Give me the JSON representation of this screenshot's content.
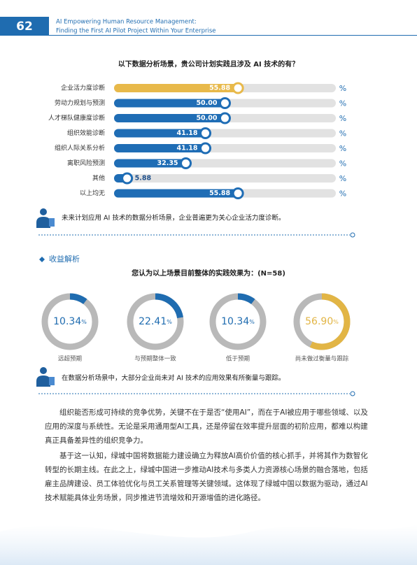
{
  "header": {
    "page_number": "62",
    "title_lines": [
      "AI Empowering Human Resource Management:",
      "Finding the First AI Pilot Project Within Your Enterprise"
    ]
  },
  "chart_data": [
    {
      "type": "bar",
      "title": "以下数据分析场景，贵公司计划实践且涉及 AI 技术的有？",
      "categories": [
        "企业活力度诊断",
        "劳动力规划与预测",
        "人才梯队健康度诊断",
        "组织效能诊断",
        "组织人际关系分析",
        "离职风险预测",
        "其他",
        "以上均无"
      ],
      "values": [
        55.88,
        50,
        50,
        41.18,
        41.18,
        32.35,
        5.88,
        55.88
      ],
      "value_labels": [
        "55.88",
        "50.00",
        "50.00",
        "41.18",
        "41.18",
        "32.35",
        "5.88",
        "55.88"
      ],
      "colors": [
        "#e8b94a",
        "#1f6db5",
        "#1f6db5",
        "#1f6db5",
        "#1f6db5",
        "#1f6db5",
        "#1f6db5",
        "#1f6db5"
      ],
      "track_color": "#e2e2e2",
      "xlim": [
        0,
        100
      ],
      "unit": "%"
    },
    {
      "type": "donut",
      "title": "您认为以上场景目前整体的实践效果为：(N=58)",
      "categories": [
        "远超预期",
        "与预期整体一致",
        "低于预期",
        "尚未做过衡量与跟踪"
      ],
      "values": [
        10.34,
        22.41,
        10.34,
        56.9
      ],
      "value_labels": [
        "10.34",
        "22.41",
        "10.34",
        "56.90"
      ],
      "colors": [
        "#1f6cb0",
        "#1f6cb0",
        "#1f6cb0",
        "#e2b545"
      ],
      "track_color": "#b9b9b9",
      "unit": "%",
      "range": [
        0,
        100
      ]
    }
  ],
  "notes": [
    "未来计划应用 AI 技术的数据分析场景，企业普遍更为关心企业活力度诊断。",
    "在数据分析场景中，大部分企业尚未对 AI 技术的应用效果有所衡量与跟踪。"
  ],
  "section_title": "收益解析",
  "paragraphs": [
    "组织能否形成可持续的竞争优势，关键不在于是否“使用AI”，而在于AI被应用于哪些领域、以及应用的深度与系统性。无论是采用通用型AI工具，还是停留在效率提升层面的初阶应用，都难以构建真正具备差异性的组织竞争力。",
    "基于这一认知，绿城中国将数据能力建设确立为释放AI高价价值的核心抓手，并将其作为数智化转型的长期主线。在此之上，绿城中国进一步推动AI技术与多类人力资源核心场景的融合落地，包括雇主品牌建设、员工体验优化与员工关系管理等关键领域。这体现了绿城中国以数据为驱动，通过AI技术赋能具体业务场景，同步推进节流增效和开源增值的进化路径。"
  ]
}
